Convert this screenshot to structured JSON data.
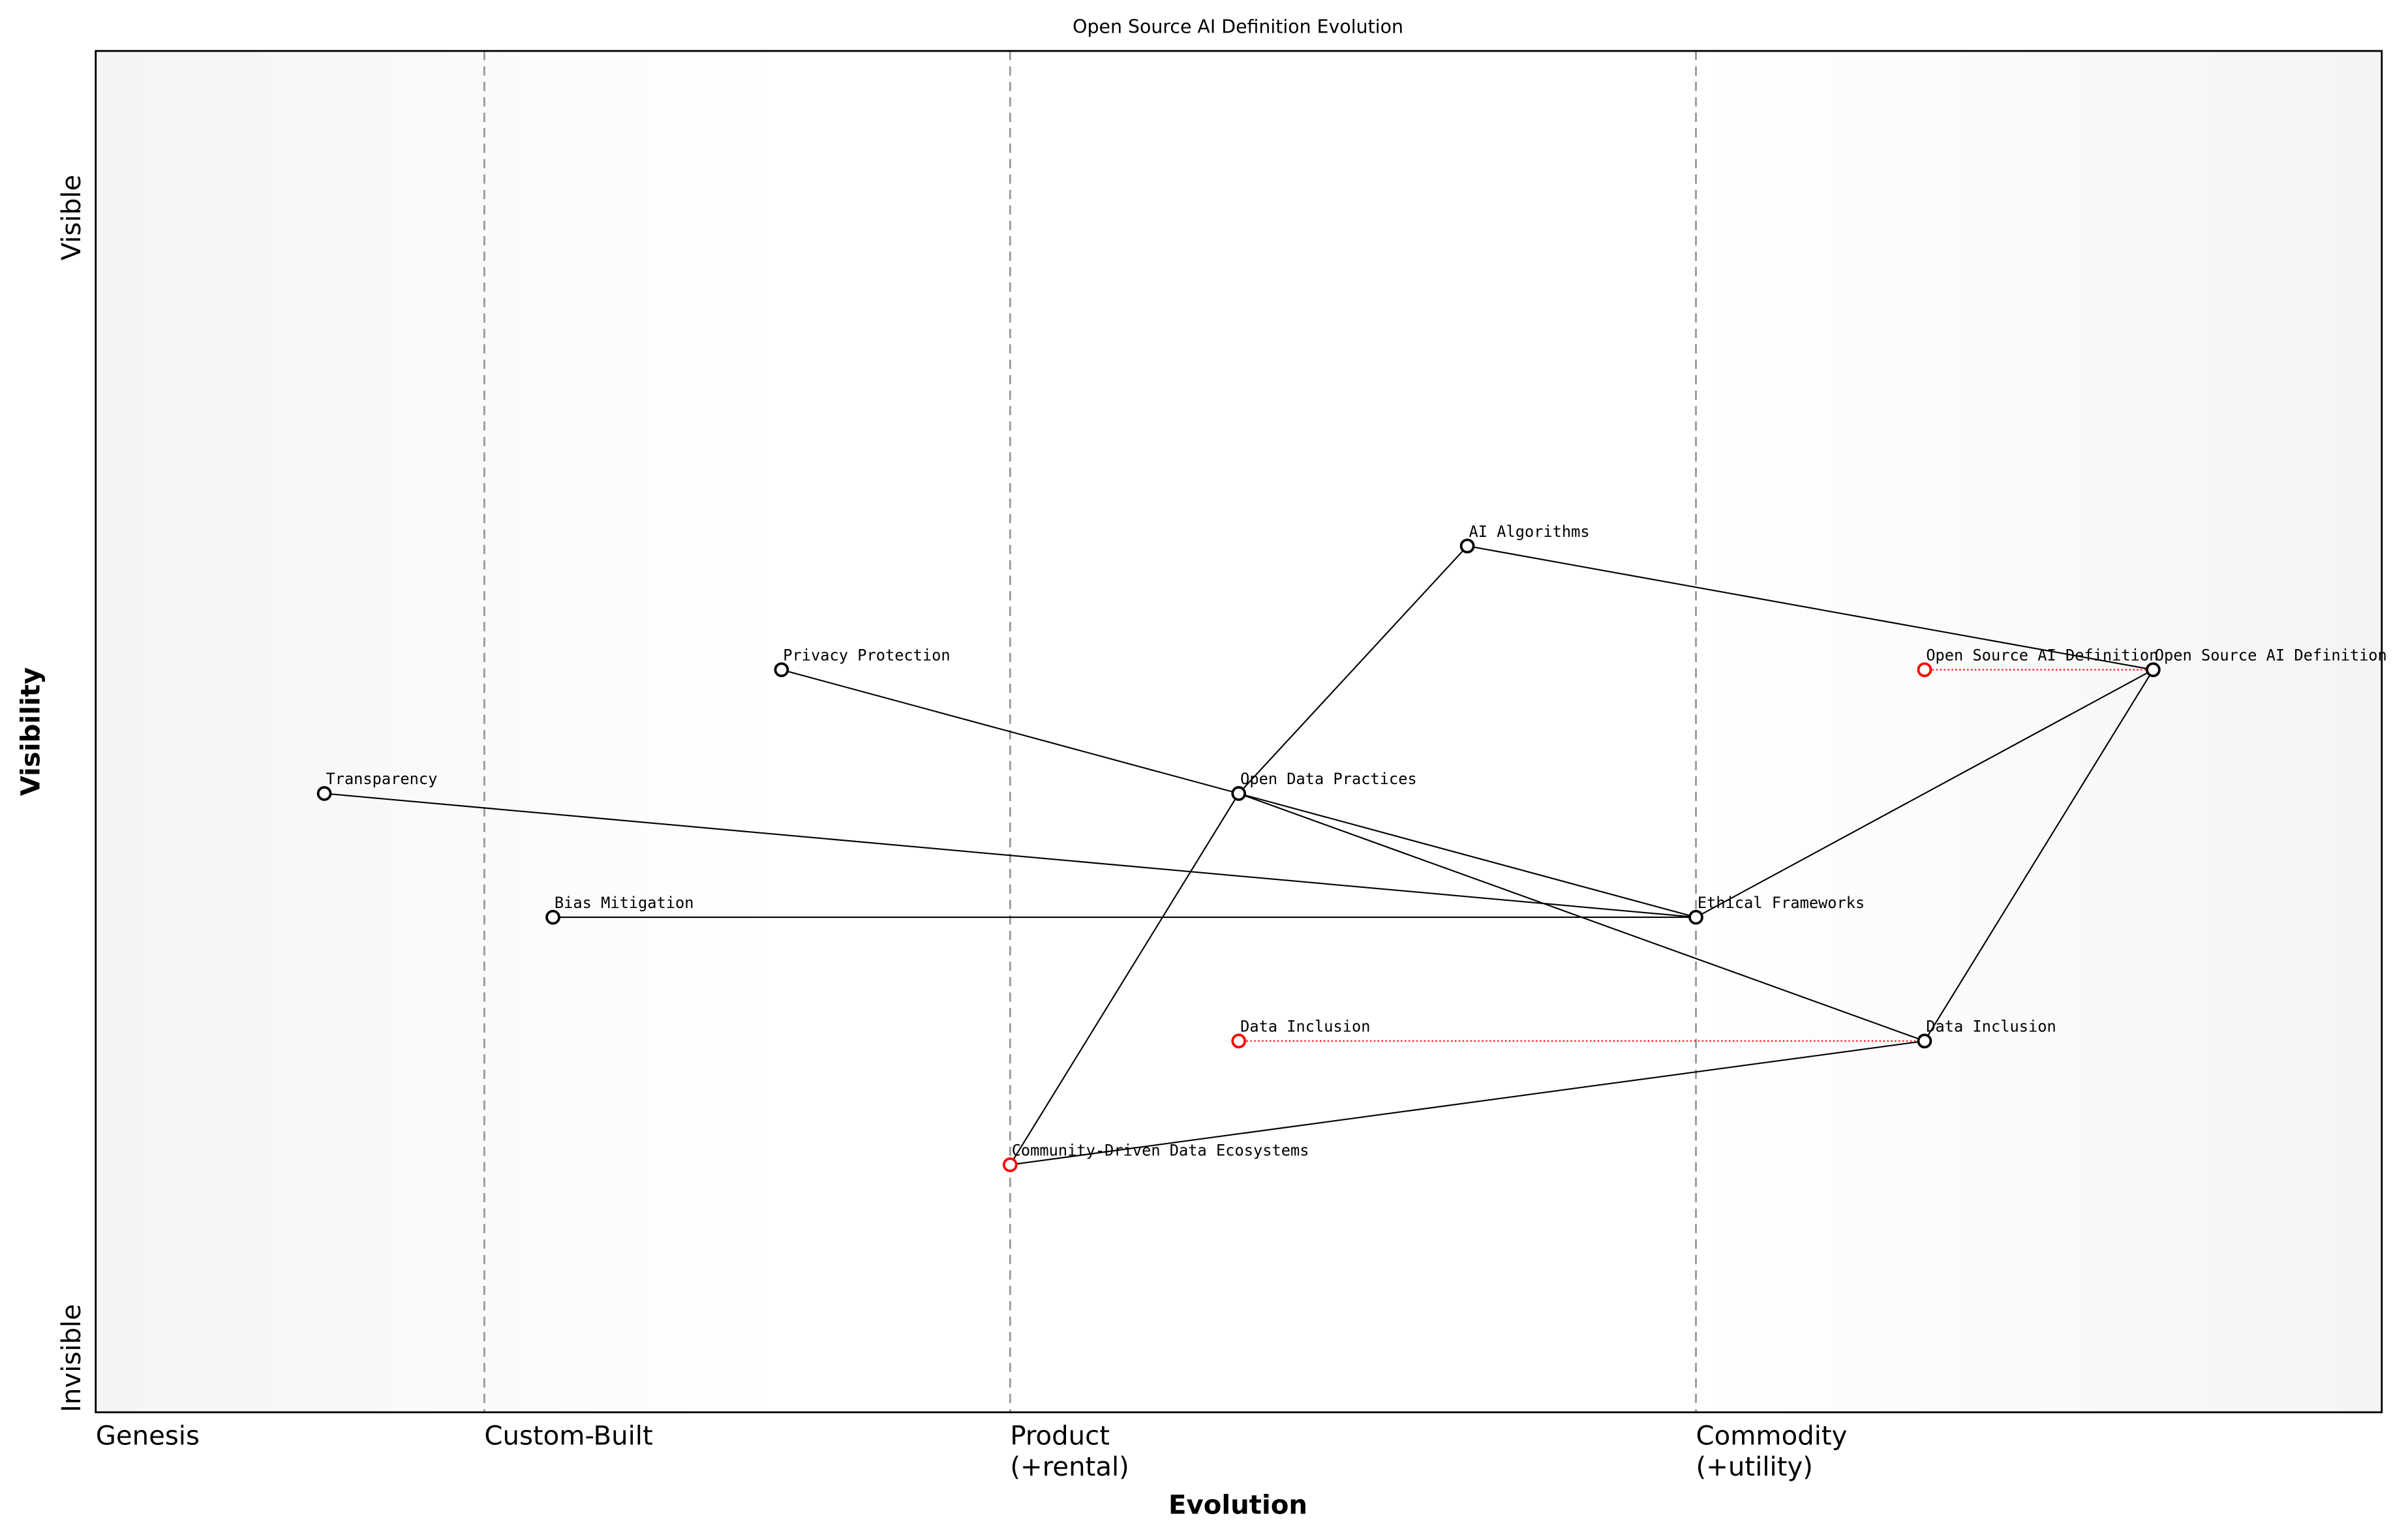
{
  "chart_data": {
    "type": "wardley",
    "title": "Open Source AI Definition Evolution",
    "xlabel": "Evolution",
    "ylabel": "Visibility",
    "xlim": [
      0,
      1
    ],
    "ylim": [
      0,
      1.1
    ],
    "xticks": [
      {
        "value": 0,
        "label": "Genesis"
      },
      {
        "value": 0.17,
        "label": "Custom-Built"
      },
      {
        "value": 0.4,
        "label": "Product\n(+rental)"
      },
      {
        "value": 0.7,
        "label": "Commodity\n(+utility)"
      }
    ],
    "yticks": [
      {
        "value": 0,
        "label": "Invisible"
      },
      {
        "value": 1,
        "label": "Visible"
      }
    ],
    "nodes": [
      {
        "name": "Transparency",
        "x": 0.1,
        "y": 0.5,
        "color": "#000000"
      },
      {
        "name": "Bias Mitigation",
        "x": 0.2,
        "y": 0.4,
        "color": "#000000"
      },
      {
        "name": "Privacy Protection",
        "x": 0.3,
        "y": 0.6,
        "color": "#000000"
      },
      {
        "name": "Open Data Practices",
        "x": 0.5,
        "y": 0.5,
        "color": "#000000"
      },
      {
        "name": "AI Algorithms",
        "x": 0.6,
        "y": 0.7,
        "color": "#000000"
      },
      {
        "name": "Ethical Frameworks",
        "x": 0.7,
        "y": 0.4,
        "color": "#000000"
      },
      {
        "name": "Data Inclusion",
        "x": 0.8,
        "y": 0.3,
        "color": "#000000"
      },
      {
        "name": "Open Source AI Definition",
        "x": 0.9,
        "y": 0.6,
        "color": "#000000"
      },
      {
        "name": "Community-Driven Data Ecosystems",
        "x": 0.4,
        "y": 0.2,
        "color": "#ff0000"
      },
      {
        "name": "Data Inclusion",
        "x": 0.5,
        "y": 0.3,
        "color": "#ff0000"
      },
      {
        "name": "Open Source AI Definition",
        "x": 0.8,
        "y": 0.6,
        "color": "#ff0000"
      }
    ],
    "links": [
      [
        0,
        5
      ],
      [
        1,
        5
      ],
      [
        2,
        3
      ],
      [
        3,
        5
      ],
      [
        3,
        6
      ],
      [
        3,
        4
      ],
      [
        4,
        7
      ],
      [
        5,
        7
      ],
      [
        6,
        7
      ],
      [
        8,
        3
      ],
      [
        8,
        6
      ]
    ],
    "evolution_links": [
      [
        9,
        6
      ],
      [
        10,
        7
      ]
    ]
  }
}
